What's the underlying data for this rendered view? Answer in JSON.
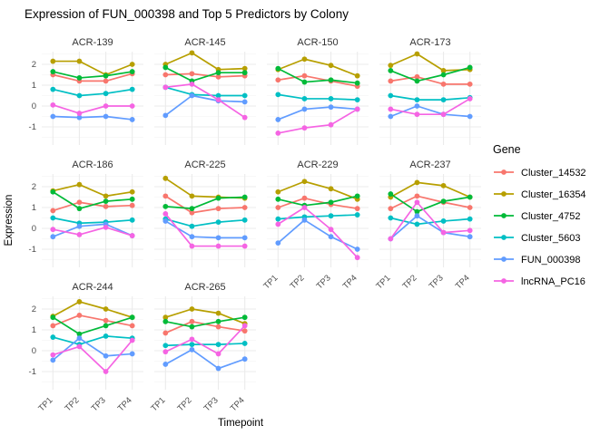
{
  "title": "Expression of FUN_000398 and Top 5 Predictors by Colony",
  "axis": {
    "x_label": "Timepoint",
    "y_label": "Expression",
    "x_ticks": [
      "TP1",
      "TP2",
      "TP3",
      "TP4"
    ],
    "y_ticks": [
      2,
      1,
      0,
      -1
    ]
  },
  "legend": {
    "title": "Gene",
    "entries": [
      "Cluster_14532",
      "Cluster_16354",
      "Cluster_4752",
      "Cluster_5603",
      "FUN_000398",
      "lncRNA_PC16"
    ]
  },
  "colors": {
    "Cluster_14532": "#F8766D",
    "Cluster_16354": "#B79F00",
    "Cluster_4752": "#00BA38",
    "Cluster_5603": "#00BFC4",
    "FUN_000398": "#619CFF",
    "lncRNA_PC16": "#F564E3",
    "grid_major": "#ebebeb",
    "grid_minor": "#f6f6f6",
    "tick_text": "#4d4d4d",
    "strip_text": "#333333"
  },
  "chart_data": {
    "type": "line",
    "x": [
      "TP1",
      "TP2",
      "TP3",
      "TP4"
    ],
    "xlabel": "Timepoint",
    "ylabel": "Expression",
    "title": "Expression of FUN_000398 and Top 5 Predictors by Colony",
    "ylim": [
      -1.85,
      2.6
    ],
    "y_major_gridlines": [
      -1,
      0,
      1,
      2
    ],
    "y_minor_gridlines": [
      -1.5,
      -0.5,
      0.5,
      1.5,
      2.5
    ],
    "grid": "on",
    "legend_position": "right",
    "point_markers": true,
    "facets": [
      {
        "colony": "ACR-139",
        "series": {
          "Cluster_14532": [
            1.5,
            1.2,
            1.2,
            1.55
          ],
          "Cluster_16354": [
            2.15,
            2.15,
            1.5,
            2.0
          ],
          "Cluster_4752": [
            1.65,
            1.35,
            1.45,
            1.65
          ],
          "Cluster_5603": [
            0.8,
            0.5,
            0.6,
            0.8
          ],
          "FUN_000398": [
            -0.5,
            -0.55,
            -0.5,
            -0.65
          ],
          "lncRNA_PC16": [
            0.05,
            -0.35,
            0.0,
            0.0
          ]
        }
      },
      {
        "colony": "ACR-145",
        "series": {
          "Cluster_14532": [
            1.5,
            1.55,
            1.4,
            1.45
          ],
          "Cluster_16354": [
            2.0,
            2.55,
            1.75,
            1.8
          ],
          "Cluster_4752": [
            1.85,
            1.2,
            1.6,
            1.6
          ],
          "Cluster_5603": [
            0.9,
            0.55,
            0.5,
            0.5
          ],
          "FUN_000398": [
            -0.45,
            0.5,
            0.25,
            0.2
          ],
          "lncRNA_PC16": [
            0.9,
            1.05,
            0.3,
            -0.55
          ]
        }
      },
      {
        "colony": "ACR-150",
        "series": {
          "Cluster_14532": [
            1.25,
            1.45,
            1.2,
            0.95
          ],
          "Cluster_16354": [
            1.75,
            2.25,
            1.95,
            1.45
          ],
          "Cluster_4752": [
            1.8,
            1.15,
            1.25,
            1.1
          ],
          "Cluster_5603": [
            0.55,
            0.35,
            0.35,
            0.3
          ],
          "FUN_000398": [
            -0.65,
            -0.15,
            -0.05,
            -0.15
          ],
          "lncRNA_PC16": [
            -1.3,
            -1.05,
            -0.9,
            -0.15
          ]
        }
      },
      {
        "colony": "ACR-173",
        "series": {
          "Cluster_14532": [
            1.2,
            1.4,
            1.05,
            1.05
          ],
          "Cluster_16354": [
            1.95,
            2.5,
            1.7,
            1.75
          ],
          "Cluster_4752": [
            1.7,
            1.2,
            1.5,
            1.85
          ],
          "Cluster_5603": [
            0.5,
            0.3,
            0.3,
            0.4
          ],
          "FUN_000398": [
            -0.5,
            0.0,
            -0.4,
            -0.5
          ],
          "lncRNA_PC16": [
            -0.15,
            -0.4,
            -0.4,
            0.35
          ]
        }
      },
      {
        "colony": "ACR-186",
        "series": {
          "Cluster_14532": [
            0.85,
            1.25,
            1.05,
            1.1
          ],
          "Cluster_16354": [
            1.8,
            2.1,
            1.55,
            1.75
          ],
          "Cluster_4752": [
            1.75,
            0.95,
            1.3,
            1.4
          ],
          "Cluster_5603": [
            0.5,
            0.25,
            0.3,
            0.4
          ],
          "FUN_000398": [
            -0.4,
            0.1,
            0.2,
            -0.35
          ],
          "lncRNA_PC16": [
            -0.05,
            -0.3,
            0.05,
            -0.35
          ]
        }
      },
      {
        "colony": "ACR-225",
        "series": {
          "Cluster_14532": [
            1.55,
            0.75,
            0.95,
            1.0
          ],
          "Cluster_16354": [
            2.4,
            1.55,
            1.5,
            1.45
          ],
          "Cluster_4752": [
            1.05,
            0.95,
            1.45,
            1.5
          ],
          "Cluster_5603": [
            0.45,
            0.1,
            0.3,
            0.4
          ],
          "FUN_000398": [
            0.35,
            -0.4,
            -0.45,
            -0.45
          ],
          "lncRNA_PC16": [
            0.7,
            -0.85,
            -0.85,
            -0.85
          ]
        }
      },
      {
        "colony": "ACR-229",
        "series": {
          "Cluster_14532": [
            1.0,
            1.45,
            1.15,
            0.95
          ],
          "Cluster_16354": [
            1.75,
            2.25,
            1.9,
            1.4
          ],
          "Cluster_4752": [
            1.4,
            1.1,
            1.25,
            1.55
          ],
          "Cluster_5603": [
            0.45,
            0.55,
            0.6,
            0.65
          ],
          "FUN_000398": [
            -0.7,
            0.4,
            -0.4,
            -1.0
          ],
          "lncRNA_PC16": [
            0.2,
            1.0,
            -0.05,
            -1.4
          ]
        }
      },
      {
        "colony": "ACR-237",
        "series": {
          "Cluster_14532": [
            0.95,
            1.55,
            1.25,
            1.0
          ],
          "Cluster_16354": [
            1.5,
            2.2,
            2.05,
            1.5
          ],
          "Cluster_4752": [
            1.65,
            0.8,
            1.3,
            1.5
          ],
          "Cluster_5603": [
            0.5,
            0.2,
            0.35,
            0.45
          ],
          "FUN_000398": [
            -0.5,
            0.6,
            -0.2,
            -0.4
          ],
          "lncRNA_PC16": [
            -0.5,
            1.25,
            -0.2,
            -0.1
          ]
        }
      },
      {
        "colony": "ACR-244",
        "series": {
          "Cluster_14532": [
            1.2,
            1.7,
            1.45,
            1.2
          ],
          "Cluster_16354": [
            1.65,
            2.35,
            2.0,
            1.6
          ],
          "Cluster_4752": [
            1.6,
            0.8,
            1.2,
            1.6
          ],
          "Cluster_5603": [
            0.65,
            0.3,
            0.7,
            0.6
          ],
          "FUN_000398": [
            -0.45,
            0.6,
            -0.25,
            -0.15
          ],
          "lncRNA_PC16": [
            -0.2,
            0.2,
            -1.0,
            0.5
          ]
        }
      },
      {
        "colony": "ACR-265",
        "series": {
          "Cluster_14532": [
            0.85,
            1.4,
            1.15,
            0.95
          ],
          "Cluster_16354": [
            1.6,
            2.0,
            1.8,
            1.3
          ],
          "Cluster_4752": [
            1.4,
            1.15,
            1.4,
            1.6
          ],
          "Cluster_5603": [
            0.25,
            0.3,
            0.3,
            0.35
          ],
          "FUN_000398": [
            -0.65,
            0.05,
            -0.85,
            -0.4
          ],
          "lncRNA_PC16": [
            -0.05,
            0.55,
            -0.15,
            1.2
          ]
        }
      }
    ]
  }
}
